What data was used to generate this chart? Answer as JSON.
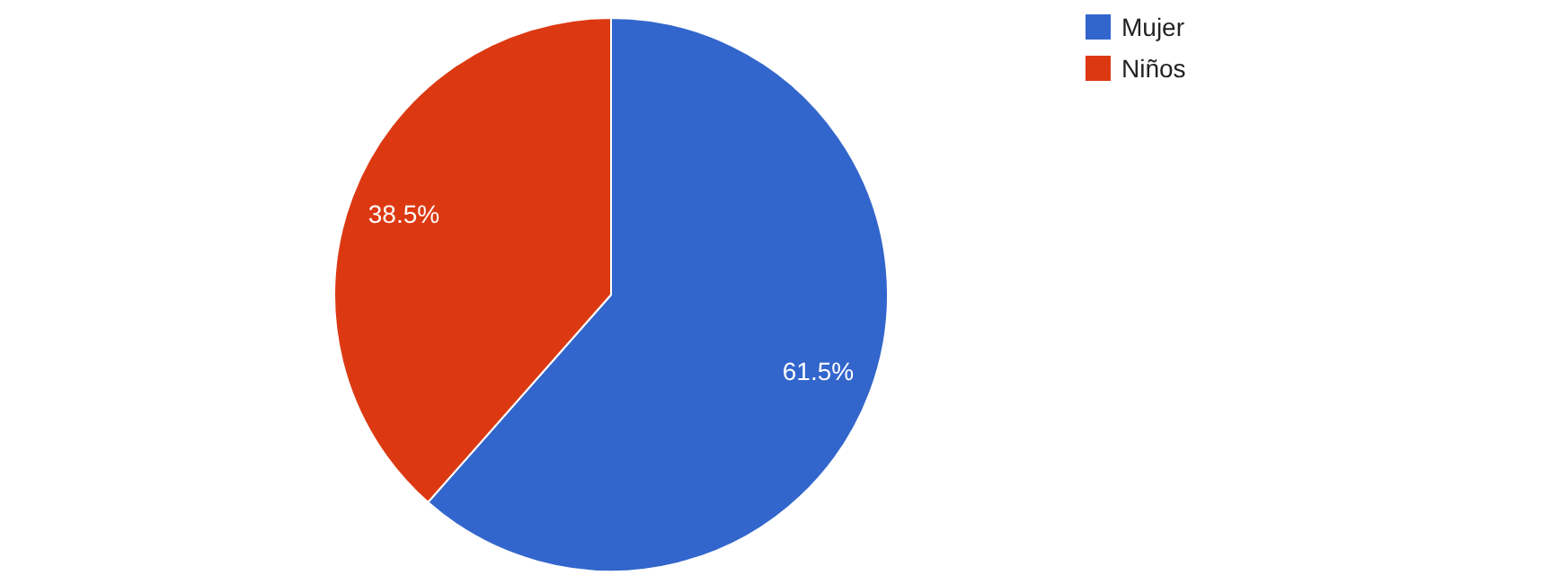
{
  "chart_data": {
    "type": "pie",
    "categories": [
      "Mujer",
      "Niños"
    ],
    "values": [
      61.5,
      38.5
    ],
    "colors": [
      "#3366cc",
      "#dc3912"
    ],
    "value_labels": [
      "61.5%",
      "38.5%"
    ],
    "legend": "top right"
  }
}
